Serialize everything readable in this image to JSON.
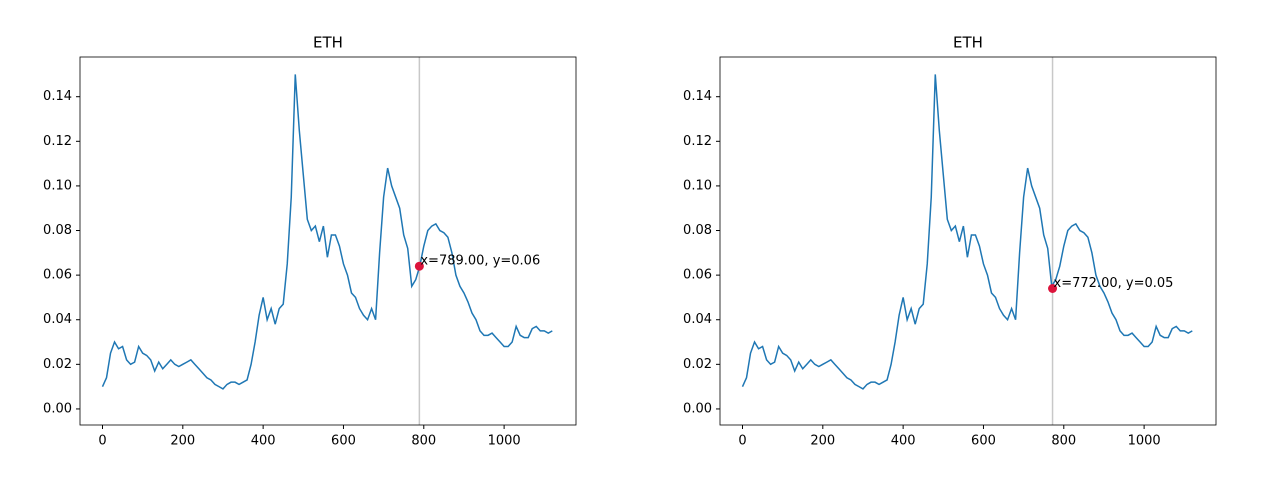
{
  "chart_data": [
    {
      "type": "line",
      "title": "ETH",
      "x": [
        0,
        10,
        20,
        30,
        40,
        50,
        60,
        70,
        80,
        90,
        100,
        110,
        120,
        130,
        140,
        150,
        160,
        170,
        180,
        190,
        200,
        210,
        220,
        230,
        240,
        250,
        260,
        270,
        280,
        290,
        300,
        310,
        320,
        330,
        340,
        350,
        360,
        370,
        380,
        390,
        400,
        410,
        420,
        430,
        440,
        450,
        460,
        470,
        480,
        490,
        500,
        510,
        520,
        530,
        540,
        550,
        560,
        570,
        580,
        590,
        600,
        610,
        620,
        630,
        640,
        650,
        660,
        670,
        680,
        690,
        700,
        710,
        720,
        730,
        740,
        750,
        760,
        770,
        780,
        790,
        800,
        810,
        820,
        830,
        840,
        850,
        860,
        870,
        880,
        890,
        900,
        910,
        920,
        930,
        940,
        950,
        960,
        970,
        980,
        990,
        1000,
        1010,
        1020,
        1030,
        1040,
        1050,
        1060,
        1070,
        1080,
        1090,
        1100,
        1110,
        1120
      ],
      "series": [
        {
          "name": "ETH",
          "color": "#1f77b4",
          "values": [
            0.01,
            0.014,
            0.025,
            0.03,
            0.027,
            0.028,
            0.022,
            0.02,
            0.021,
            0.028,
            0.025,
            0.024,
            0.022,
            0.017,
            0.021,
            0.018,
            0.02,
            0.022,
            0.02,
            0.019,
            0.02,
            0.021,
            0.022,
            0.02,
            0.018,
            0.016,
            0.014,
            0.013,
            0.011,
            0.01,
            0.009,
            0.011,
            0.012,
            0.012,
            0.011,
            0.012,
            0.013,
            0.02,
            0.03,
            0.042,
            0.05,
            0.04,
            0.045,
            0.038,
            0.045,
            0.047,
            0.065,
            0.095,
            0.15,
            0.125,
            0.105,
            0.085,
            0.08,
            0.082,
            0.075,
            0.082,
            0.068,
            0.078,
            0.078,
            0.073,
            0.065,
            0.06,
            0.052,
            0.05,
            0.045,
            0.042,
            0.04,
            0.045,
            0.04,
            0.07,
            0.095,
            0.108,
            0.1,
            0.095,
            0.09,
            0.078,
            0.072,
            0.055,
            0.058,
            0.064,
            0.073,
            0.08,
            0.082,
            0.083,
            0.08,
            0.079,
            0.077,
            0.07,
            0.06,
            0.055,
            0.052,
            0.048,
            0.043,
            0.04,
            0.035,
            0.033,
            0.033,
            0.034,
            0.032,
            0.03,
            0.028,
            0.028,
            0.03,
            0.037,
            0.033,
            0.032,
            0.032,
            0.036,
            0.037,
            0.035,
            0.035,
            0.034,
            0.035
          ]
        }
      ],
      "xlim": [
        -56,
        1179
      ],
      "xticks": [
        0,
        200,
        400,
        600,
        800,
        1000
      ],
      "ylim": [
        -0.0072,
        0.1578
      ],
      "yticks": [
        {
          "value": 0,
          "label": "0.00"
        },
        {
          "value": 0.02,
          "label": "0.02"
        },
        {
          "value": 0.04,
          "label": "0.04"
        },
        {
          "value": 0.06,
          "label": "0.06"
        },
        {
          "value": 0.08,
          "label": "0.08"
        },
        {
          "value": 0.1,
          "label": "0.10"
        },
        {
          "value": 0.12,
          "label": "0.12"
        },
        {
          "value": 0.14,
          "label": "0.14"
        }
      ],
      "annotation": {
        "x": 789,
        "y": 0.064,
        "label": "x=789.00, y=0.06",
        "color": "crimson",
        "line_color": "#c8c8c8"
      }
    },
    {
      "type": "line",
      "title": "ETH",
      "x": [
        0,
        10,
        20,
        30,
        40,
        50,
        60,
        70,
        80,
        90,
        100,
        110,
        120,
        130,
        140,
        150,
        160,
        170,
        180,
        190,
        200,
        210,
        220,
        230,
        240,
        250,
        260,
        270,
        280,
        290,
        300,
        310,
        320,
        330,
        340,
        350,
        360,
        370,
        380,
        390,
        400,
        410,
        420,
        430,
        440,
        450,
        460,
        470,
        480,
        490,
        500,
        510,
        520,
        530,
        540,
        550,
        560,
        570,
        580,
        590,
        600,
        610,
        620,
        630,
        640,
        650,
        660,
        670,
        680,
        690,
        700,
        710,
        720,
        730,
        740,
        750,
        760,
        770,
        780,
        790,
        800,
        810,
        820,
        830,
        840,
        850,
        860,
        870,
        880,
        890,
        900,
        910,
        920,
        930,
        940,
        950,
        960,
        970,
        980,
        990,
        1000,
        1010,
        1020,
        1030,
        1040,
        1050,
        1060,
        1070,
        1080,
        1090,
        1100,
        1110,
        1120
      ],
      "series": [
        {
          "name": "ETH",
          "color": "#1f77b4",
          "values": [
            0.01,
            0.014,
            0.025,
            0.03,
            0.027,
            0.028,
            0.022,
            0.02,
            0.021,
            0.028,
            0.025,
            0.024,
            0.022,
            0.017,
            0.021,
            0.018,
            0.02,
            0.022,
            0.02,
            0.019,
            0.02,
            0.021,
            0.022,
            0.02,
            0.018,
            0.016,
            0.014,
            0.013,
            0.011,
            0.01,
            0.009,
            0.011,
            0.012,
            0.012,
            0.011,
            0.012,
            0.013,
            0.02,
            0.03,
            0.042,
            0.05,
            0.04,
            0.045,
            0.038,
            0.045,
            0.047,
            0.065,
            0.095,
            0.15,
            0.125,
            0.105,
            0.085,
            0.08,
            0.082,
            0.075,
            0.082,
            0.068,
            0.078,
            0.078,
            0.073,
            0.065,
            0.06,
            0.052,
            0.05,
            0.045,
            0.042,
            0.04,
            0.045,
            0.04,
            0.07,
            0.095,
            0.108,
            0.1,
            0.095,
            0.09,
            0.078,
            0.072,
            0.055,
            0.058,
            0.064,
            0.073,
            0.08,
            0.082,
            0.083,
            0.08,
            0.079,
            0.077,
            0.07,
            0.06,
            0.055,
            0.052,
            0.048,
            0.043,
            0.04,
            0.035,
            0.033,
            0.033,
            0.034,
            0.032,
            0.03,
            0.028,
            0.028,
            0.03,
            0.037,
            0.033,
            0.032,
            0.032,
            0.036,
            0.037,
            0.035,
            0.035,
            0.034,
            0.035
          ]
        }
      ],
      "xlim": [
        -56,
        1179
      ],
      "xticks": [
        0,
        200,
        400,
        600,
        800,
        1000
      ],
      "ylim": [
        -0.0072,
        0.1578
      ],
      "yticks": [
        {
          "value": 0,
          "label": "0.00"
        },
        {
          "value": 0.02,
          "label": "0.02"
        },
        {
          "value": 0.04,
          "label": "0.04"
        },
        {
          "value": 0.06,
          "label": "0.06"
        },
        {
          "value": 0.08,
          "label": "0.08"
        },
        {
          "value": 0.1,
          "label": "0.10"
        },
        {
          "value": 0.12,
          "label": "0.12"
        },
        {
          "value": 0.14,
          "label": "0.14"
        }
      ],
      "annotation": {
        "x": 772,
        "y": 0.054,
        "label": "x=772.00, y=0.05",
        "color": "crimson",
        "line_color": "#c8c8c8"
      }
    }
  ]
}
